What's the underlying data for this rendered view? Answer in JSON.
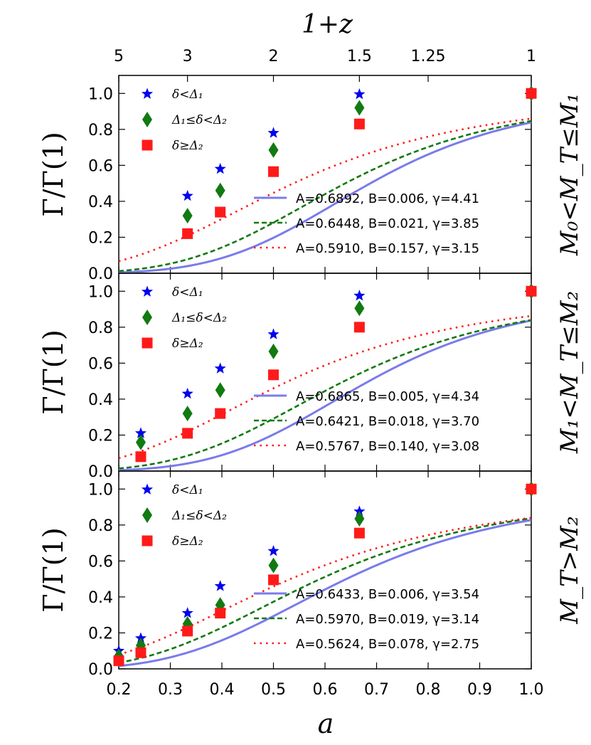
{
  "chart_data": {
    "type": "scatter",
    "top_axis": {
      "label": "1+z",
      "ticks": [
        {
          "a": 0.2,
          "label": "5"
        },
        {
          "a": 0.3333,
          "label": "3"
        },
        {
          "a": 0.5,
          "label": "2"
        },
        {
          "a": 0.6667,
          "label": "1.5"
        },
        {
          "a": 0.8,
          "label": "1.25"
        },
        {
          "a": 1.0,
          "label": "1"
        }
      ]
    },
    "x_axis": {
      "label": "a",
      "range": [
        0.2,
        1.0
      ],
      "ticks": [
        0.2,
        0.3,
        0.4,
        0.5,
        0.6,
        0.7,
        0.8,
        0.9,
        1.0
      ],
      "tick_labels": [
        "0.2",
        "0.3",
        "0.4",
        "0.5",
        "0.6",
        "0.7",
        "0.8",
        "0.9",
        "1.0"
      ]
    },
    "y_axis": {
      "label": "Γ/Γ(1)",
      "range": [
        0.0,
        1.1
      ],
      "ticks": [
        0.0,
        0.2,
        0.4,
        0.6,
        0.8,
        1.0
      ],
      "tick_labels": [
        "0.0",
        "0.2",
        "0.4",
        "0.6",
        "0.8",
        "1.0"
      ]
    },
    "series_styles": [
      {
        "key": "low",
        "legend": "δ<Δ₁",
        "marker": "star",
        "marker_color": "#0000ee",
        "line_color": "#7b7bea",
        "line_style": "solid"
      },
      {
        "key": "mid",
        "legend": "Δ₁≤δ<Δ₂",
        "marker": "diamond",
        "marker_color": "#117a11",
        "line_color": "#117a11",
        "line_style": "dashed"
      },
      {
        "key": "high",
        "legend": "δ≥Δ₂",
        "marker": "square",
        "marker_color": "#ff1a1a",
        "line_color": "#ff1a1a",
        "line_style": "dotted"
      }
    ],
    "panels": [
      {
        "side_label": "M₀<M_T≤M₁",
        "series": [
          {
            "key": "low",
            "x": [
              0.3333,
              0.3968,
              0.5,
              0.6667,
              1.0
            ],
            "y": [
              0.43,
              0.58,
              0.78,
              0.995,
              1.0
            ],
            "fit": {
              "A": 0.6892,
              "B": 0.006,
              "gamma": 4.41,
              "label": "A=0.6892, B=0.006, γ=4.41"
            }
          },
          {
            "key": "mid",
            "x": [
              0.3333,
              0.3968,
              0.5,
              0.6667,
              1.0
            ],
            "y": [
              0.32,
              0.46,
              0.685,
              0.92,
              1.0
            ],
            "fit": {
              "A": 0.6448,
              "B": 0.021,
              "gamma": 3.85,
              "label": "A=0.6448, B=0.021, γ=3.85"
            }
          },
          {
            "key": "high",
            "x": [
              0.3333,
              0.3968,
              0.5,
              0.6667,
              1.0
            ],
            "y": [
              0.22,
              0.34,
              0.565,
              0.83,
              1.0
            ],
            "fit": {
              "A": 0.591,
              "B": 0.157,
              "gamma": 3.15,
              "label": "A=0.5910, B=0.157, γ=3.15"
            }
          }
        ]
      },
      {
        "side_label": "M₁<M_T≤M₂",
        "series": [
          {
            "key": "low",
            "x": [
              0.2427,
              0.3333,
              0.3968,
              0.5,
              0.6667,
              1.0
            ],
            "y": [
              0.21,
              0.43,
              0.57,
              0.76,
              0.975,
              1.0
            ],
            "fit": {
              "A": 0.6865,
              "B": 0.005,
              "gamma": 4.34,
              "label": "A=0.6865, B=0.005, γ=4.34"
            }
          },
          {
            "key": "mid",
            "x": [
              0.2427,
              0.3333,
              0.3968,
              0.5,
              0.6667,
              1.0
            ],
            "y": [
              0.16,
              0.32,
              0.45,
              0.665,
              0.905,
              1.0
            ],
            "fit": {
              "A": 0.6421,
              "B": 0.018,
              "gamma": 3.7,
              "label": "A=0.6421, B=0.018, γ=3.70"
            }
          },
          {
            "key": "high",
            "x": [
              0.2427,
              0.3333,
              0.3968,
              0.5,
              0.6667,
              1.0
            ],
            "y": [
              0.08,
              0.21,
              0.32,
              0.535,
              0.8,
              1.0
            ],
            "fit": {
              "A": 0.5767,
              "B": 0.14,
              "gamma": 3.08,
              "label": "A=0.5767, B=0.140, γ=3.08"
            }
          }
        ]
      },
      {
        "side_label": "M_T>M₂",
        "series": [
          {
            "key": "low",
            "x": [
              0.2,
              0.2427,
              0.3333,
              0.3968,
              0.5,
              0.6667,
              1.0
            ],
            "y": [
              0.1,
              0.17,
              0.31,
              0.46,
              0.655,
              0.875,
              1.0
            ],
            "fit": {
              "A": 0.6433,
              "B": 0.006,
              "gamma": 3.54,
              "label": "A=0.6433, B=0.006, γ=3.54"
            }
          },
          {
            "key": "mid",
            "x": [
              0.2,
              0.2427,
              0.3333,
              0.3968,
              0.5,
              0.6667,
              1.0
            ],
            "y": [
              0.07,
              0.13,
              0.25,
              0.355,
              0.575,
              0.835,
              1.0
            ],
            "fit": {
              "A": 0.597,
              "B": 0.019,
              "gamma": 3.14,
              "label": "A=0.5970, B=0.019, γ=3.14"
            }
          },
          {
            "key": "high",
            "x": [
              0.2,
              0.2427,
              0.3333,
              0.3968,
              0.5,
              0.6667,
              1.0
            ],
            "y": [
              0.045,
              0.09,
              0.21,
              0.31,
              0.495,
              0.755,
              1.0
            ],
            "fit": {
              "A": 0.5624,
              "B": 0.078,
              "gamma": 2.75,
              "label": "A=0.5624, B=0.078, γ=2.75"
            }
          }
        ]
      }
    ]
  }
}
